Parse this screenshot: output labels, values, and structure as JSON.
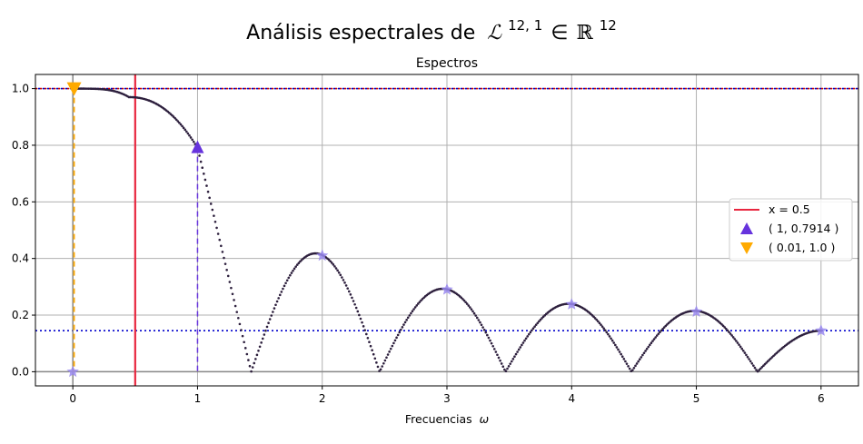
{
  "chart_data": {
    "type": "scatter",
    "suptitle": "Análisis espectrales de",
    "suptitle_math": {
      "operator": "ℒ",
      "operator_sup": "12, 1",
      "relation": "∈",
      "space": "ℝ",
      "space_sup": "12"
    },
    "title": "Espectros",
    "xlabel": "Frecuencias",
    "xlabel_symbol": "ω",
    "xlim": [
      -0.3,
      6.3
    ],
    "ylim": [
      -0.05,
      1.05
    ],
    "xticks": [
      0,
      1,
      2,
      3,
      4,
      5,
      6
    ],
    "yticks": [
      0.0,
      0.2,
      0.4,
      0.6,
      0.8,
      1.0
    ],
    "ytick_labels": [
      "0.0",
      "0.2",
      "0.4",
      "0.6",
      "0.8",
      "1.0"
    ],
    "grid": true,
    "spectrum": {
      "description_points": "dense dotted curve of |response| vs frequency",
      "x_start": 0.0,
      "x_end": 6.0,
      "lobes": [
        {
          "x_start": 1.43,
          "x_end": 2.46,
          "peak_x": 1.95,
          "peak_y": 0.418
        },
        {
          "x_start": 2.46,
          "x_end": 3.47,
          "peak_x": 2.97,
          "peak_y": 0.293
        },
        {
          "x_start": 3.47,
          "x_end": 4.48,
          "peak_x": 3.98,
          "peak_y": 0.24
        },
        {
          "x_start": 4.48,
          "x_end": 5.49,
          "peak_x": 4.99,
          "peak_y": 0.215
        },
        {
          "x_start": 5.49,
          "x_end": 6.0,
          "peak_x": 6.0,
          "peak_y": 0.145
        }
      ],
      "main_lobe_zero": 1.43,
      "point_color": "#2d1f3d"
    },
    "star_markers": [
      {
        "x": 0,
        "y": 0.0
      },
      {
        "x": 2,
        "y": 0.41
      },
      {
        "x": 3,
        "y": 0.29
      },
      {
        "x": 4,
        "y": 0.238
      },
      {
        "x": 5,
        "y": 0.212
      },
      {
        "x": 6,
        "y": 0.145
      }
    ],
    "hlines": [
      {
        "y": 1.0,
        "color": "#cc0000",
        "style": "dotted"
      },
      {
        "y": 1.0,
        "color": "#0000cc",
        "style": "dotted"
      },
      {
        "y": 0.145,
        "color": "#0000cc",
        "style": "dotted"
      },
      {
        "y": 0.0,
        "color": "#888888",
        "style": "solid"
      }
    ],
    "vlines": [
      {
        "x": 0.5,
        "color": "#e8263f",
        "style": "solid"
      },
      {
        "x": 0.0,
        "color": "#888888",
        "style": "solid"
      }
    ],
    "series": [
      {
        "name": "x = 0.5",
        "kind": "line",
        "color": "#e8263f"
      },
      {
        "name": "( 1, 0.7914 )",
        "kind": "marker-up",
        "x": 1,
        "y": 0.7914,
        "color": "#6633dd"
      },
      {
        "name": "( 0.01, 1.0 )",
        "kind": "marker-down",
        "x": 0.01,
        "y": 1.0,
        "color": "#ffaa00"
      }
    ],
    "legend_placement": "center-right",
    "colors": {
      "purple": "#6633dd",
      "orange": "#ffaa00",
      "red": "#e8263f",
      "star": "#9988ee",
      "grid": "#b0b0b0"
    }
  }
}
